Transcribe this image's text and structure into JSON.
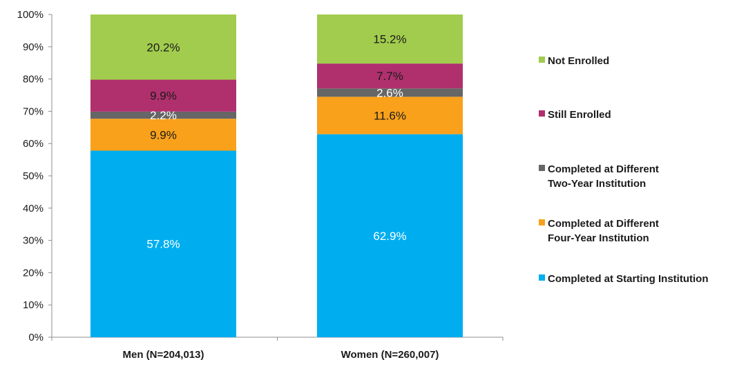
{
  "chart_data": {
    "type": "bar",
    "stacked": true,
    "categories": [
      "Men (N=204,013)",
      "Women (N=260,007)"
    ],
    "ylim": [
      0,
      100
    ],
    "yticks": [
      "0%",
      "10%",
      "20%",
      "30%",
      "40%",
      "50%",
      "60%",
      "70%",
      "80%",
      "90%",
      "100%"
    ],
    "series": [
      {
        "name": "Completed at Starting Institution",
        "color": "#00aeef",
        "label_color": "#ffffff",
        "values": [
          57.8,
          62.9
        ],
        "labels": [
          "57.8%",
          "62.9%"
        ]
      },
      {
        "name": "Completed at Different Four-Year Institution",
        "color": "#f9a11b",
        "label_color": "#1a1a1a",
        "values": [
          9.9,
          11.6
        ],
        "labels": [
          "9.9%",
          "11.6%"
        ]
      },
      {
        "name": "Completed at Different Two-Year Institution",
        "color": "#666666",
        "label_color": "#ffffff",
        "values": [
          2.2,
          2.6
        ],
        "labels": [
          "2.2%",
          "2.6%"
        ]
      },
      {
        "name": "Still Enrolled",
        "color": "#b0306e",
        "label_color": "#1a1a1a",
        "values": [
          9.9,
          7.7
        ],
        "labels": [
          "9.9%",
          "7.7%"
        ]
      },
      {
        "name": "Not Enrolled",
        "color": "#a2cc4e",
        "label_color": "#1a1a1a",
        "values": [
          20.2,
          15.2
        ],
        "labels": [
          "20.2%",
          "15.2%"
        ]
      }
    ],
    "legend": {
      "position": "right",
      "entries": [
        {
          "label": "Not Enrolled",
          "color": "#a2cc4e"
        },
        {
          "label": "Still Enrolled",
          "color": "#b0306e"
        },
        {
          "label": "Completed at Different\nTwo-Year Institution",
          "color": "#666666"
        },
        {
          "label": "Completed at Different\nFour-Year Institution",
          "color": "#f9a11b"
        },
        {
          "label": "Completed at Starting Institution",
          "color": "#00aeef"
        }
      ]
    },
    "grid": false,
    "title": "",
    "xlabel": "",
    "ylabel": ""
  }
}
